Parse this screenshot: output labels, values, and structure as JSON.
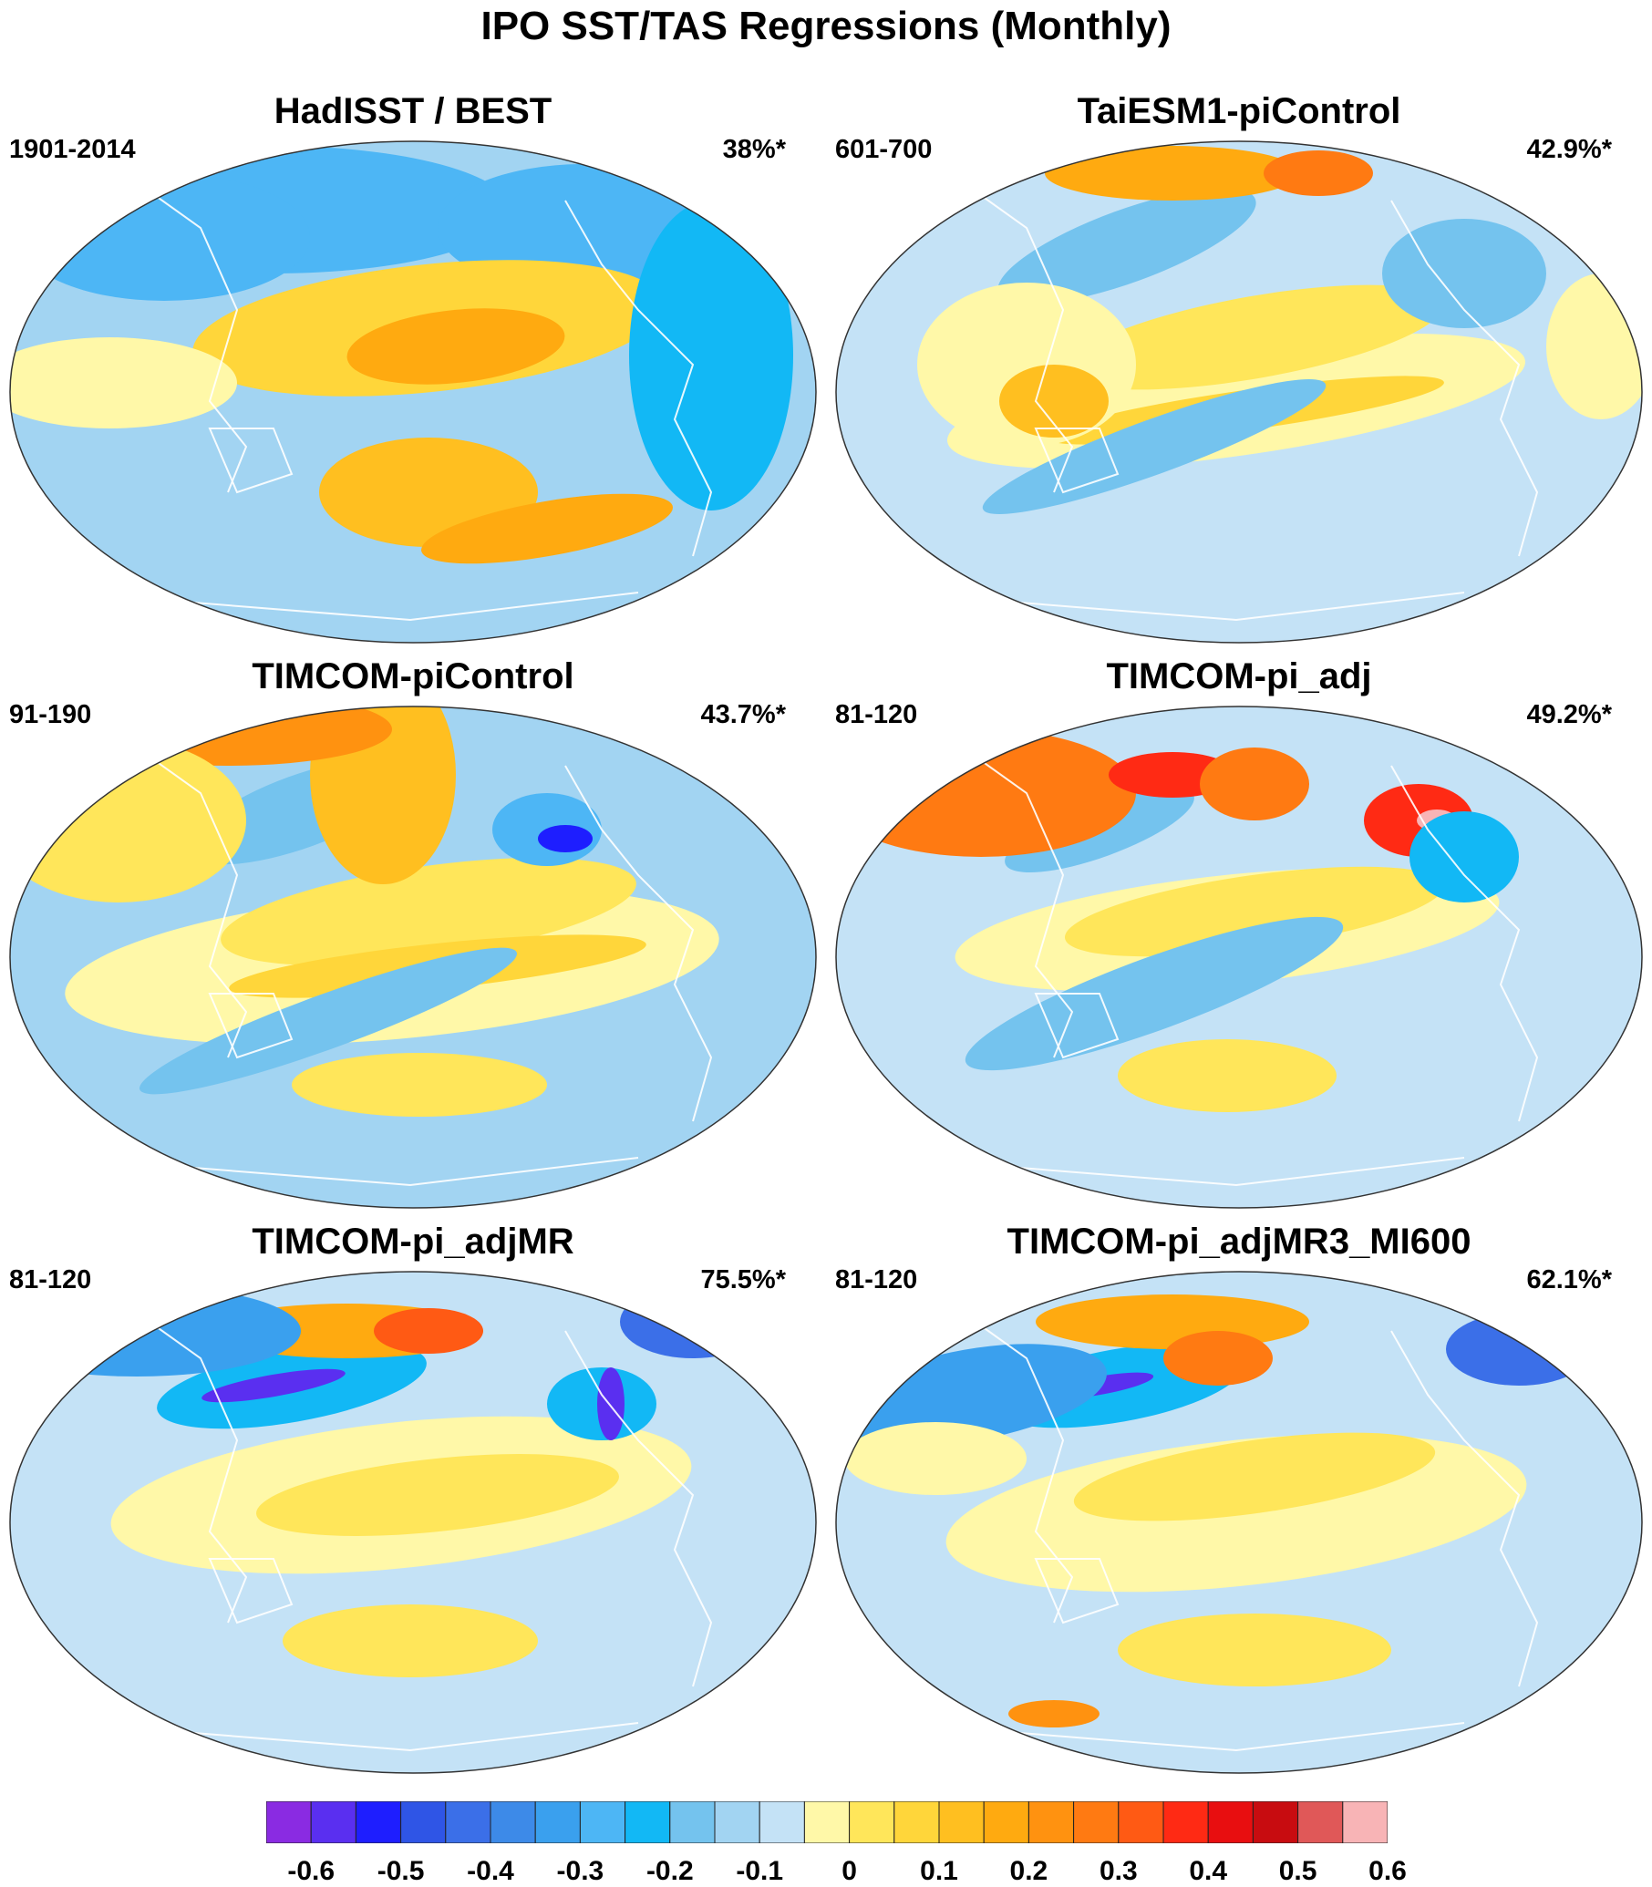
{
  "title": "IPO SST/TAS Regressions (Monthly)",
  "panels": [
    {
      "title": "HadISST / BEST",
      "period": "1901-2014",
      "variance": "38%*",
      "style": "obs"
    },
    {
      "title": "TaiESM1-piControl",
      "period": "601-700",
      "variance": "42.9%*",
      "style": "model-a"
    },
    {
      "title": "TIMCOM-piControl",
      "period": "91-190",
      "variance": "43.7%*",
      "style": "model-b"
    },
    {
      "title": "TIMCOM-pi_adj",
      "period": "81-120",
      "variance": "49.2%*",
      "style": "model-c"
    },
    {
      "title": "TIMCOM-pi_adjMR",
      "period": "81-120",
      "variance": "75.5%*",
      "style": "model-d"
    },
    {
      "title": "TIMCOM-pi_adjMR3_MI600",
      "period": "81-120",
      "variance": "62.1%*",
      "style": "model-e"
    }
  ],
  "colorbar": {
    "colors": [
      "#8a2be2",
      "#5a2ff0",
      "#1e1eff",
      "#2f55e6",
      "#3b6fe8",
      "#3d8ae8",
      "#3aa0ee",
      "#4db6f5",
      "#12b8f5",
      "#74c3ee",
      "#a2d4f2",
      "#c4e2f6",
      "#fff8a8",
      "#ffe65a",
      "#ffd63a",
      "#ffbf20",
      "#ffaa10",
      "#ff9210",
      "#ff7a12",
      "#ff5a14",
      "#ff2a14",
      "#e80e10",
      "#c80c10",
      "#e05858",
      "#f8b4b6"
    ],
    "labels": [
      "-0.6",
      "-0.5",
      "-0.4",
      "-0.3",
      "-0.2",
      "-0.1",
      "0",
      "0.1",
      "0.2",
      "0.3",
      "0.4",
      "0.5",
      "0.6"
    ]
  }
}
